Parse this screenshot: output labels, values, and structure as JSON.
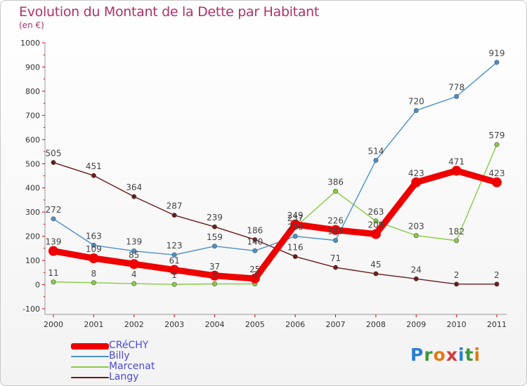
{
  "title": "Evolution du Montant de la Dette par Habitant",
  "subtitle": "(en €)",
  "logo": "Proxiti",
  "chart_data": {
    "type": "line",
    "x": [
      "2000",
      "2001",
      "2002",
      "2003",
      "2004",
      "2005",
      "2006",
      "2007",
      "2008",
      "2009",
      "2010",
      "2011"
    ],
    "ylim": [
      -100,
      1000
    ],
    "yticks": [
      -100,
      0,
      100,
      200,
      300,
      400,
      500,
      600,
      700,
      800,
      900,
      1000
    ],
    "grid": false,
    "legend_position": "bottom-left",
    "series": [
      {
        "name": "CRéCHY",
        "color": "#ee0000",
        "values": [
          139,
          109,
          85,
          61,
          37,
          25,
          249,
          226,
          209,
          423,
          471,
          423
        ]
      },
      {
        "name": "Billy",
        "color": "#4a90c8",
        "values": [
          272,
          163,
          139,
          123,
          159,
          140,
          200,
          183,
          514,
          720,
          778,
          919
        ]
      },
      {
        "name": "Marcenat",
        "color": "#88cc44",
        "values": [
          11,
          8,
          4,
          1,
          3,
          3,
          237,
          386,
          263,
          203,
          182,
          579
        ]
      },
      {
        "name": "Langy",
        "color": "#6b1a1a",
        "values": [
          505,
          451,
          364,
          287,
          239,
          186,
          116,
          71,
          45,
          24,
          2,
          2
        ]
      }
    ],
    "labels": [
      {
        "series": "CRéCHY",
        "values": [
          "139",
          "109",
          "85",
          "61",
          "37",
          "25",
          "249",
          "226",
          "209",
          "423",
          "471",
          "423"
        ]
      },
      {
        "series": "Billy",
        "values": [
          "272",
          "163",
          "139",
          "123",
          "159",
          "140",
          "200",
          "183",
          "514",
          "720",
          "778",
          "919"
        ]
      },
      {
        "series": "Marcenat",
        "values": [
          "11",
          "8",
          "4",
          "1",
          "3",
          "3",
          "237",
          "386",
          "263",
          "203",
          "182",
          "579"
        ]
      },
      {
        "series": "Langy",
        "values": [
          "505",
          "451",
          "364",
          "287",
          "239",
          "186",
          "116",
          "71",
          "45",
          "24",
          "2",
          "2"
        ]
      }
    ]
  }
}
